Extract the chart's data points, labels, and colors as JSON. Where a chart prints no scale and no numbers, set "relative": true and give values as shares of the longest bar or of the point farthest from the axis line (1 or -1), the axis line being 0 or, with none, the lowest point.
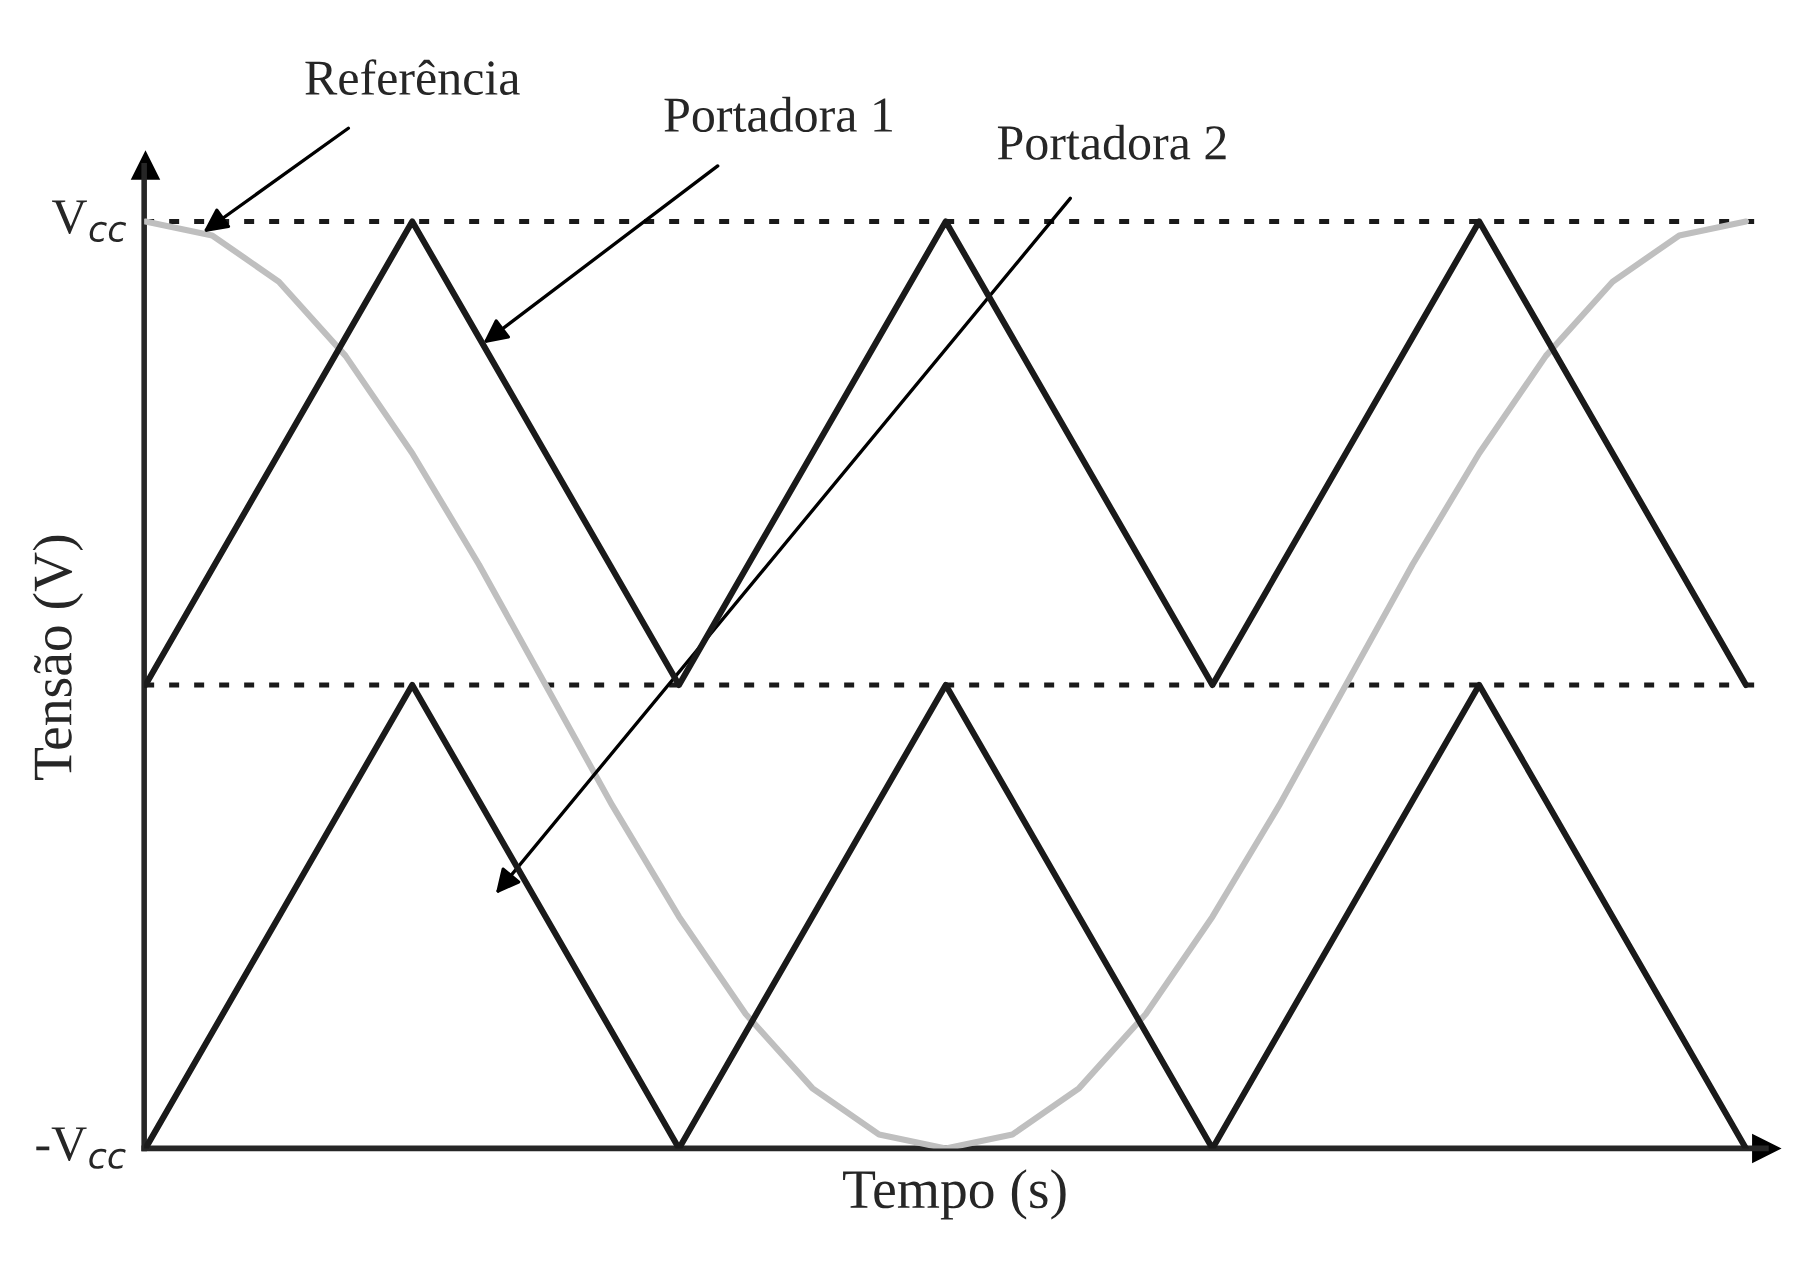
{
  "chart_data": {
    "type": "line",
    "xlabel": "Tempo (s)",
    "ylabel": "Tensão (V)",
    "relative": true,
    "categories": [
      null,
      null,
      null,
      null,
      null,
      null,
      null,
      null,
      null,
      null,
      null,
      null,
      null,
      null,
      null,
      null,
      null,
      null,
      null,
      null,
      null,
      null,
      null,
      null,
      null
    ],
    "series": [
      {
        "name": "Referência",
        "color": "#bfbfbf",
        "values": [
          1,
          0.985,
          0.935,
          0.855,
          0.75,
          0.63,
          0.5,
          0.37,
          0.25,
          0.145,
          0.065,
          0.015,
          0,
          0.015,
          0.065,
          0.145,
          0.25,
          0.37,
          0.5,
          0.63,
          0.75,
          0.855,
          0.935,
          0.985,
          1
        ]
      },
      {
        "name": "Portadora 1",
        "color": "#1a1a1a",
        "values": [
          0.5,
          0.625,
          0.75,
          0.875,
          1,
          0.875,
          0.75,
          0.625,
          0.5,
          0.625,
          0.75,
          0.875,
          1,
          0.875,
          0.75,
          0.625,
          0.5,
          0.625,
          0.75,
          0.875,
          1,
          0.875,
          0.75,
          0.625,
          0.5
        ]
      },
      {
        "name": "Portadora 2",
        "color": "#1a1a1a",
        "values": [
          0,
          0.125,
          0.25,
          0.375,
          0.5,
          0.375,
          0.25,
          0.125,
          0,
          0.125,
          0.25,
          0.375,
          0.5,
          0.375,
          0.25,
          0.125,
          0,
          0.125,
          0.25,
          0.375,
          0.5,
          0.375,
          0.25,
          0.125,
          0
        ]
      }
    ],
    "annotations": [
      "V$_{cc}$",
      "-V$_{cc}$"
    ],
    "ref_lines": [
      {
        "axis": "y",
        "value": 1,
        "line_style": "dashed",
        "color": "#1a1a1a"
      },
      {
        "axis": "y",
        "value": 0.5,
        "line_style": "dashed",
        "color": "#1a1a1a"
      }
    ],
    "grid": false,
    "legend": false,
    "marker": "none",
    "line_style": "solid"
  }
}
